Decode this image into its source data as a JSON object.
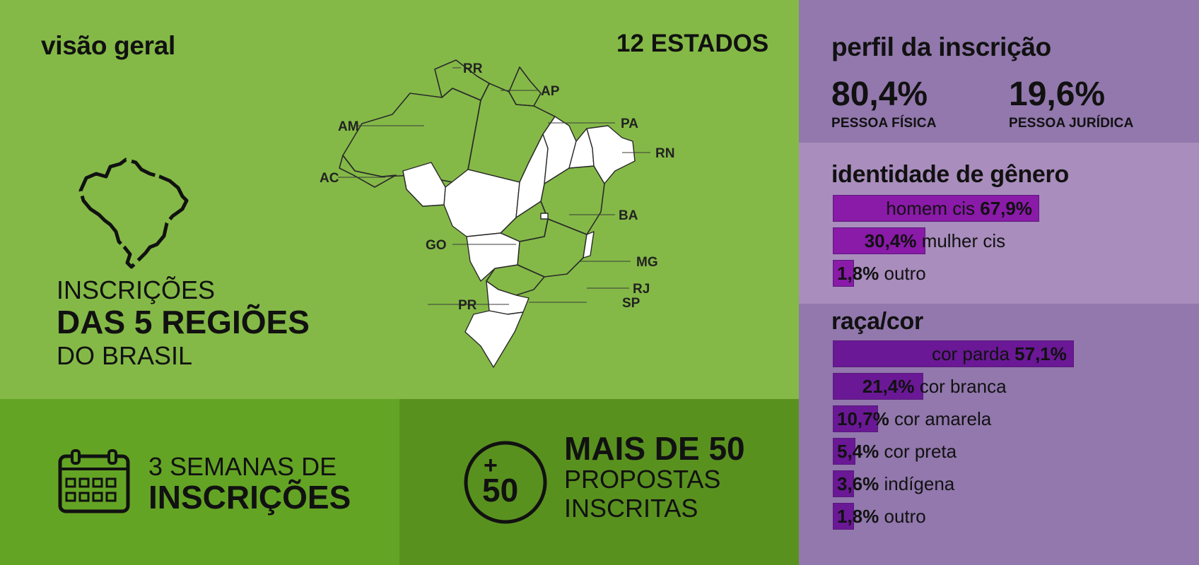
{
  "overview": {
    "title": "visão geral",
    "states_count": "12 ESTADOS",
    "regions_line1": "INSCRIÇÕES",
    "regions_line2": "DAS 5 REGIÕES",
    "regions_line3": "DO BRASIL",
    "map_labels": [
      "RR",
      "AP",
      "AM",
      "PA",
      "RN",
      "AC",
      "BA",
      "GO",
      "MG",
      "RJ",
      "PR",
      "SP"
    ]
  },
  "weeks": {
    "line1": "3 SEMANAS DE",
    "line2": "INSCRIÇÕES",
    "icon": "calendar-icon"
  },
  "proposals": {
    "badge": "50",
    "badge_plus": "+",
    "line1": "MAIS DE 50",
    "line2": "PROPOSTAS",
    "line3": "INSCRITAS",
    "icon": "plus-50-circle-icon"
  },
  "profile": {
    "title": "perfil da inscrição",
    "items": [
      {
        "value": "80,4%",
        "label": "PESSOA FÍSICA"
      },
      {
        "value": "19,6%",
        "label": "PESSOA JURÍDICA"
      }
    ]
  },
  "colors": {
    "overview_bg": "#84b947",
    "weeks_bg": "#64a425",
    "proposals_bg": "#59911f",
    "profile_bg": "#9278ad",
    "gender_bg": "#a98dbd",
    "gender_bar": "#8a1aa8",
    "race_bar": "#6a1896"
  },
  "chart_data": [
    {
      "type": "bar",
      "title": "identidade de gênero",
      "categories": [
        "homem cis",
        "mulher cis",
        "outro"
      ],
      "values": [
        67.9,
        30.4,
        1.8
      ],
      "value_labels": [
        "67,9%",
        "30,4%",
        "1,8%"
      ],
      "unit": "%"
    },
    {
      "type": "bar",
      "title": "raça/cor",
      "categories": [
        "cor parda",
        "cor branca",
        "cor amarela",
        "cor preta",
        "indígena",
        "outro"
      ],
      "values": [
        57.1,
        21.4,
        10.7,
        5.4,
        3.6,
        1.8
      ],
      "value_labels": [
        "57,1%",
        "21,4%",
        "10,7%",
        "5,4%",
        "3,6%",
        "1,8%"
      ],
      "unit": "%"
    }
  ]
}
